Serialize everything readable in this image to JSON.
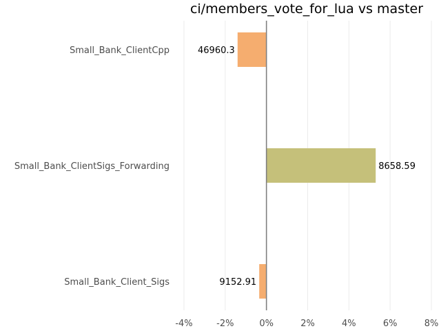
{
  "chart_data": {
    "type": "bar",
    "orientation": "horizontal",
    "title": "ci/members_vote_for_lua vs master",
    "xlabel": "",
    "ylabel": "",
    "xlim": [
      -4,
      8
    ],
    "x_ticks": [
      -4,
      -2,
      0,
      2,
      4,
      6,
      8
    ],
    "x_tick_labels": [
      "-4%",
      "-2%",
      "0%",
      "2%",
      "4%",
      "6%",
      "8%"
    ],
    "grid": "vertical",
    "zero_line_color": "#808080",
    "bars": [
      {
        "category": "Small_Bank_ClientCpp",
        "value": -1.4,
        "label": "46960.3",
        "color": "#f5ad6f"
      },
      {
        "category": "Small_Bank_ClientSigs_Forwarding",
        "value": 5.3,
        "label": "8658.59",
        "color": "#c5c07a"
      },
      {
        "category": "Small_Bank_Client_Sigs",
        "value": -0.35,
        "label": "9152.91",
        "color": "#f5ad6f"
      }
    ]
  }
}
